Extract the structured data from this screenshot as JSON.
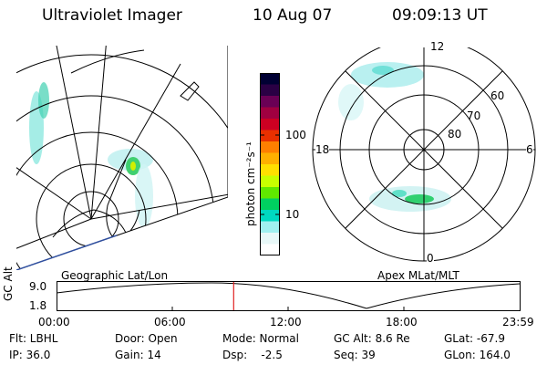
{
  "header": {
    "instrument": "Ultraviolet Imager",
    "date": "10 Aug 07",
    "time": "09:09:13 UT"
  },
  "geo_panel": {
    "caption": "Geographic Lat/Lon"
  },
  "apex_panel": {
    "caption": "Apex  MLat/MLT",
    "mlt_labels": {
      "top": "12",
      "right": "6",
      "bottom": "0",
      "left": "18"
    },
    "lat_labels": [
      "60",
      "70",
      "80"
    ]
  },
  "colorbar": {
    "label": "photon cm⁻²s⁻¹",
    "ticks": [
      "100",
      "10"
    ],
    "colors": [
      "#000033",
      "#2a0044",
      "#6a0055",
      "#a00040",
      "#cc0022",
      "#e83000",
      "#ff7f00",
      "#ffb000",
      "#ffe000",
      "#c8ff00",
      "#60e800",
      "#00d060",
      "#00d8c0",
      "#a0f0f0",
      "#e8f8f8",
      "#ffffff"
    ]
  },
  "timeline": {
    "ylabel": "GC Alt",
    "y_ticks": [
      "9.0",
      "1.8"
    ],
    "x_ticks": [
      "00:00",
      "06:00",
      "12:00",
      "18:00",
      "23:59"
    ],
    "current_time_hours": 9.15
  },
  "status": {
    "row1": {
      "flt": "Flt: LBHL",
      "door": "Door: Open",
      "mode": "Mode: Normal",
      "gcalt": "GC Alt: 8.6 Re",
      "glat": "GLat: -67.9"
    },
    "row2": {
      "ip": "IP: 36.0",
      "gain": "Gain: 14",
      "dsp": "Dsp:    -2.5",
      "seq": "Seq: 39",
      "glon": "GLon: 164.0"
    }
  }
}
